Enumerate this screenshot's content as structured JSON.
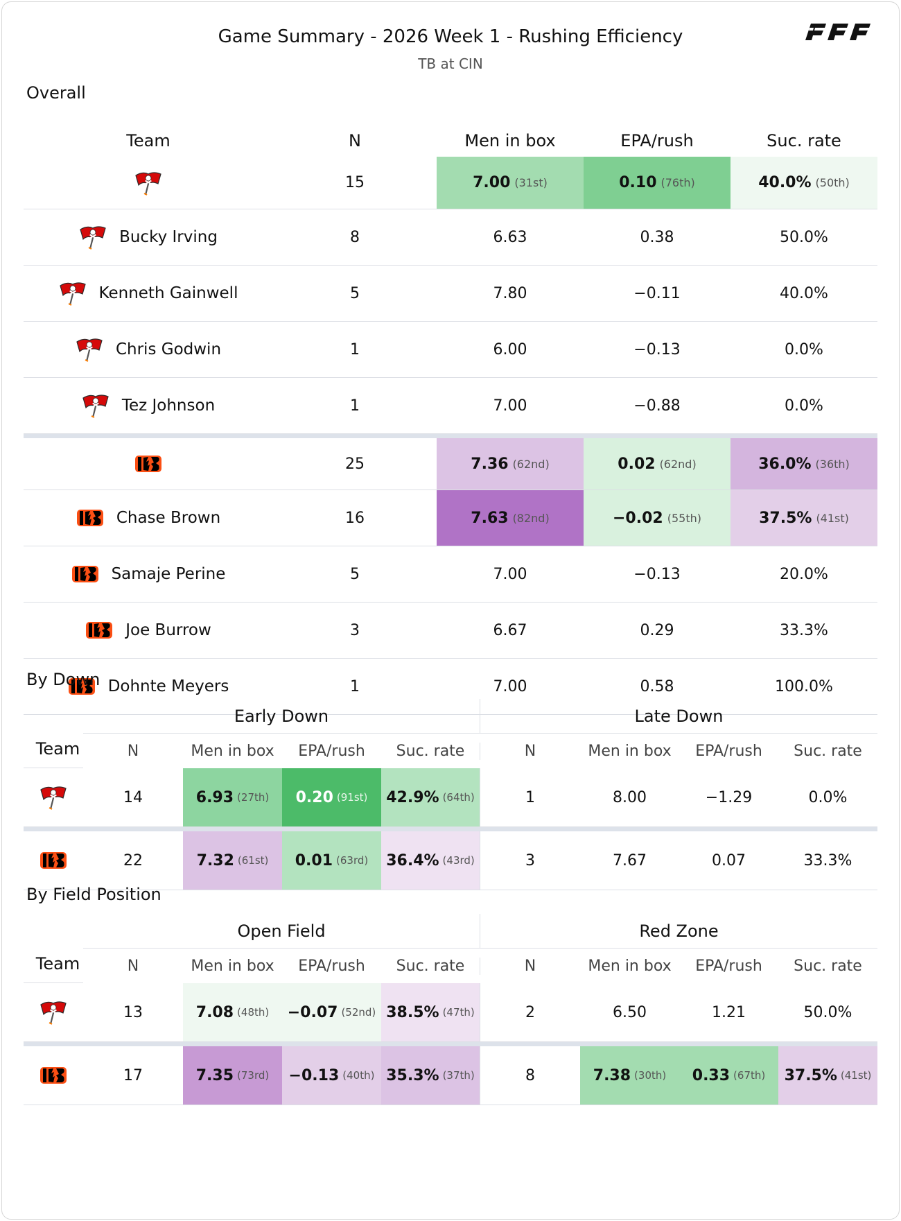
{
  "header": {
    "title": "Game Summary - 2026 Week 1 - Rushing Efficiency",
    "subtitle": "TB at CIN",
    "logo_text": "PFF"
  },
  "sections": {
    "overall": "Overall",
    "by_down": "By Down",
    "by_field": "By Field Position"
  },
  "overall": {
    "columns": [
      "Team",
      "N",
      "Men in box",
      "EPA/rush",
      "Suc. rate"
    ],
    "rows": [
      {
        "logo": "buccaneers-flag-icon",
        "name": "",
        "n": "15",
        "box": "7.00",
        "box_rank": "(31st)",
        "epa": "0.10",
        "epa_rank": "(76th)",
        "suc": "40.0%",
        "suc_rank": "(50th)",
        "is_team": true
      },
      {
        "logo": "buccaneers-flag-icon",
        "name": "Bucky Irving",
        "n": "8",
        "box": "6.63",
        "epa": "0.38",
        "suc": "50.0%"
      },
      {
        "logo": "buccaneers-flag-icon",
        "name": "Kenneth Gainwell",
        "n": "5",
        "box": "7.80",
        "epa": "−0.11",
        "suc": "40.0%"
      },
      {
        "logo": "buccaneers-flag-icon",
        "name": "Chris Godwin",
        "n": "1",
        "box": "6.00",
        "epa": "−0.13",
        "suc": "0.0%"
      },
      {
        "logo": "buccaneers-flag-icon",
        "name": "Tez Johnson",
        "n": "1",
        "box": "7.00",
        "epa": "−0.88",
        "suc": "0.0%"
      },
      {
        "logo": "bengals-logo-icon",
        "name": "",
        "n": "25",
        "box": "7.36",
        "box_rank": "(62nd)",
        "epa": "0.02",
        "epa_rank": "(62nd)",
        "suc": "36.0%",
        "suc_rank": "(36th)",
        "is_team": true
      },
      {
        "logo": "bengals-logo-icon",
        "name": "Chase Brown",
        "n": "16",
        "box": "7.63",
        "box_rank": "(82nd)",
        "epa": "−0.02",
        "epa_rank": "(55th)",
        "suc": "37.5%",
        "suc_rank": "(41st)"
      },
      {
        "logo": "bengals-logo-icon",
        "name": "Samaje Perine",
        "n": "5",
        "box": "7.00",
        "epa": "−0.13",
        "suc": "20.0%"
      },
      {
        "logo": "bengals-logo-icon",
        "name": "Joe Burrow",
        "n": "3",
        "box": "6.67",
        "epa": "0.29",
        "suc": "33.3%"
      },
      {
        "logo": "bengals-logo-icon",
        "name": "Dohnte Meyers",
        "n": "1",
        "box": "7.00",
        "epa": "0.58",
        "suc": "100.0%"
      }
    ]
  },
  "by_down": {
    "groups": [
      "Early Down",
      "Late Down"
    ],
    "columns": [
      "Team",
      "N",
      "Men in box",
      "EPA/rush",
      "Suc. rate",
      "N",
      "Men in box",
      "EPA/rush",
      "Suc. rate"
    ],
    "rows": [
      {
        "logo": "buccaneers-flag-icon",
        "a": {
          "n": "14",
          "box": "6.93",
          "box_rank": "(27th)",
          "epa": "0.20",
          "epa_rank": "(91st)",
          "suc": "42.9%",
          "suc_rank": "(64th)"
        },
        "b": {
          "n": "1",
          "box": "8.00",
          "epa": "−1.29",
          "suc": "0.0%"
        }
      },
      {
        "logo": "bengals-logo-icon",
        "a": {
          "n": "22",
          "box": "7.32",
          "box_rank": "(61st)",
          "epa": "0.01",
          "epa_rank": "(63rd)",
          "suc": "36.4%",
          "suc_rank": "(43rd)"
        },
        "b": {
          "n": "3",
          "box": "7.67",
          "epa": "0.07",
          "suc": "33.3%"
        }
      }
    ]
  },
  "by_field": {
    "groups": [
      "Open Field",
      "Red Zone"
    ],
    "columns": [
      "Team",
      "N",
      "Men in box",
      "EPA/rush",
      "Suc. rate",
      "N",
      "Men in box",
      "EPA/rush",
      "Suc. rate"
    ],
    "rows": [
      {
        "logo": "buccaneers-flag-icon",
        "a": {
          "n": "13",
          "box": "7.08",
          "box_rank": "(48th)",
          "epa": "−0.07",
          "epa_rank": "(52nd)",
          "suc": "38.5%",
          "suc_rank": "(47th)"
        },
        "b": {
          "n": "2",
          "box": "6.50",
          "epa": "1.21",
          "suc": "50.0%"
        }
      },
      {
        "logo": "bengals-logo-icon",
        "a": {
          "n": "17",
          "box": "7.35",
          "box_rank": "(73rd)",
          "epa": "−0.13",
          "epa_rank": "(40th)",
          "suc": "35.3%",
          "suc_rank": "(37th)"
        },
        "b": {
          "n": "8",
          "box": "7.38",
          "box_rank": "(30th)",
          "epa": "0.33",
          "epa_rank": "(67th)",
          "suc": "37.5%",
          "suc_rank": "(41st)"
        }
      }
    ]
  },
  "colors": {
    "green_1": "#eff8f1",
    "green_2": "#d9f1de",
    "green_3": "#b3e3bf",
    "green_4": "#a3dcb0",
    "green_5": "#8dd5a0",
    "green_6": "#7fcf92",
    "green_7": "#4cbb69",
    "purple_1": "#efe2f2",
    "purple_2": "#e3cfe8",
    "purple_3": "#dcc3e4",
    "purple_4": "#d4b5de",
    "purple_5": "#c79ad4",
    "purple_6": "#b073c6"
  }
}
